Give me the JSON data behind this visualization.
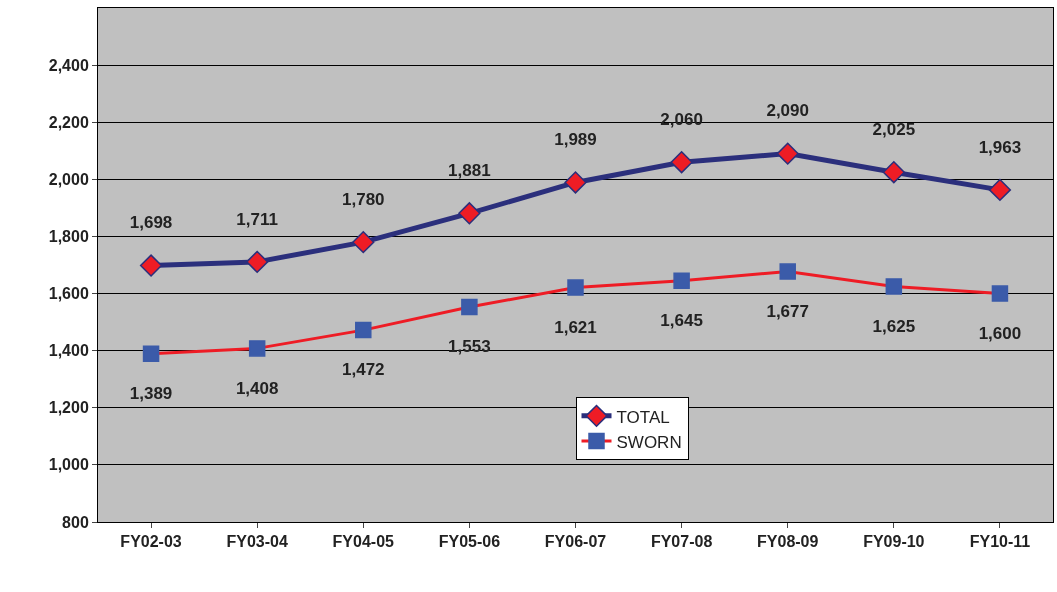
{
  "chart_data": {
    "type": "line",
    "categories": [
      "FY02-03",
      "FY03-04",
      "FY04-05",
      "FY05-06",
      "FY06-07",
      "FY07-08",
      "FY08-09",
      "FY09-10",
      "FY10-11"
    ],
    "series": [
      {
        "name": "TOTAL",
        "color": "#2b2f7c",
        "marker": "diamond",
        "values": [
          1698,
          1711,
          1780,
          1881,
          1989,
          2060,
          2090,
          2025,
          1963
        ],
        "value_labels": [
          "1,698",
          "1,711",
          "1,780",
          "1,881",
          "1,989",
          "2,060",
          "2,090",
          "2,025",
          "1,963"
        ]
      },
      {
        "name": "SWORN",
        "color": "#ee1c25",
        "marker": "square",
        "values": [
          1389,
          1408,
          1472,
          1553,
          1621,
          1645,
          1677,
          1625,
          1600
        ],
        "value_labels": [
          "1,389",
          "1,408",
          "1,472",
          "1,553",
          "1,621",
          "1,645",
          "1,677",
          "1,625",
          "1,600"
        ]
      }
    ],
    "ylim": [
      800,
      2600
    ],
    "yticks": [
      {
        "value": 800,
        "label": "800"
      },
      {
        "value": 1000,
        "label": "1,000"
      },
      {
        "value": 1200,
        "label": "1,200"
      },
      {
        "value": 1400,
        "label": "1,400"
      },
      {
        "value": 1600,
        "label": "1,600"
      },
      {
        "value": 1800,
        "label": "1,800"
      },
      {
        "value": 2000,
        "label": "2,000"
      },
      {
        "value": 2200,
        "label": "2,200"
      },
      {
        "value": 2400,
        "label": "2,400"
      }
    ],
    "grid": "y",
    "legend": "bottom",
    "line_style": "solid"
  }
}
